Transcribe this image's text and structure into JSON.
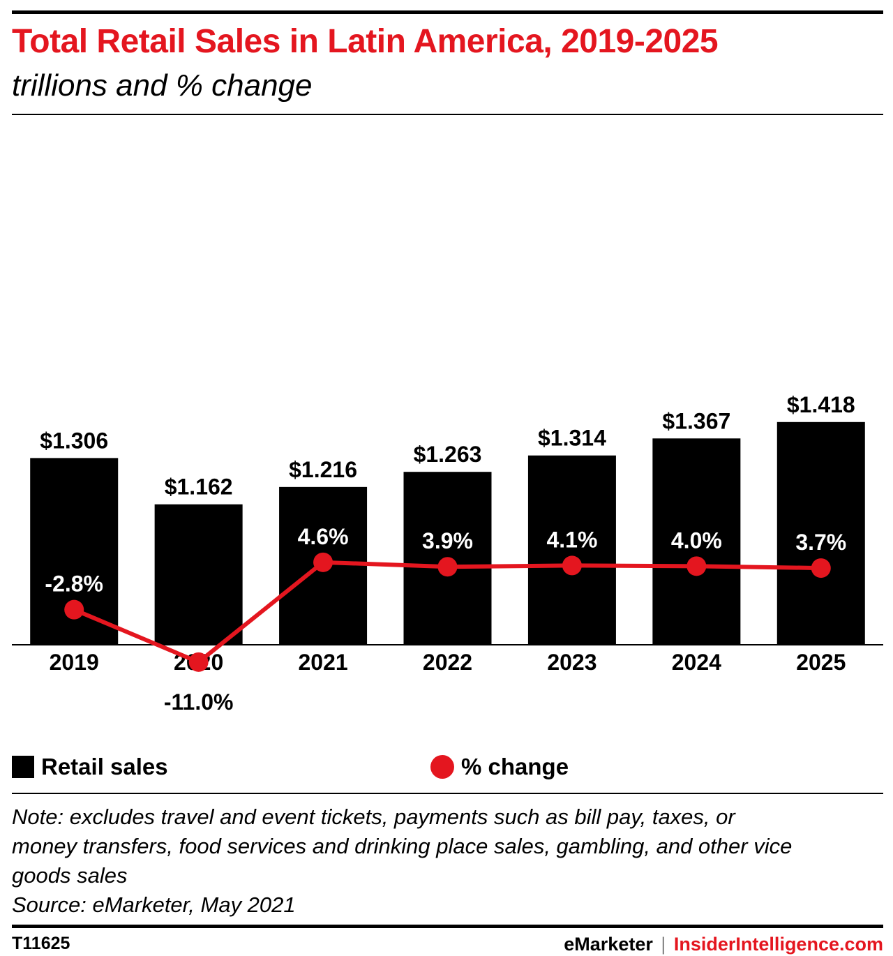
{
  "header": {
    "title": "Total Retail Sales in Latin America, 2019-2025",
    "subtitle": "trillions and % change"
  },
  "legend": {
    "bars_label": "Retail sales",
    "line_label": "% change"
  },
  "notes": [
    "Note: excludes travel and event tickets, payments such as bill pay, taxes, or",
    "money transfers, food services and drinking place sales, gambling, and other vice",
    "goods sales",
    "Source: eMarketer, May 2021"
  ],
  "footer": {
    "id": "T11625",
    "brand_left": "eMarketer",
    "separator": "|",
    "brand_right": "InsiderIntelligence.com"
  },
  "colors": {
    "accent": "#e4161f",
    "bars": "#000000",
    "text": "#000000"
  },
  "chart_data": {
    "type": "bar",
    "categories": [
      "2019",
      "2020",
      "2021",
      "2022",
      "2023",
      "2024",
      "2025"
    ],
    "series": [
      {
        "name": "Retail sales",
        "type": "bar",
        "values": [
          1.306,
          1.162,
          1.216,
          1.263,
          1.314,
          1.367,
          1.418
        ],
        "labels": [
          "$1.306",
          "$1.162",
          "$1.216",
          "$1.263",
          "$1.314",
          "$1.367",
          "$1.418"
        ]
      },
      {
        "name": "% change",
        "type": "line",
        "values": [
          -2.8,
          -11.0,
          4.6,
          3.9,
          4.1,
          4.0,
          3.7
        ],
        "labels": [
          "-2.8%",
          "-11.0%",
          "4.6%",
          "3.9%",
          "4.1%",
          "4.0%",
          "3.7%"
        ]
      }
    ],
    "legend_position": "bottom-left",
    "grid": false
  }
}
